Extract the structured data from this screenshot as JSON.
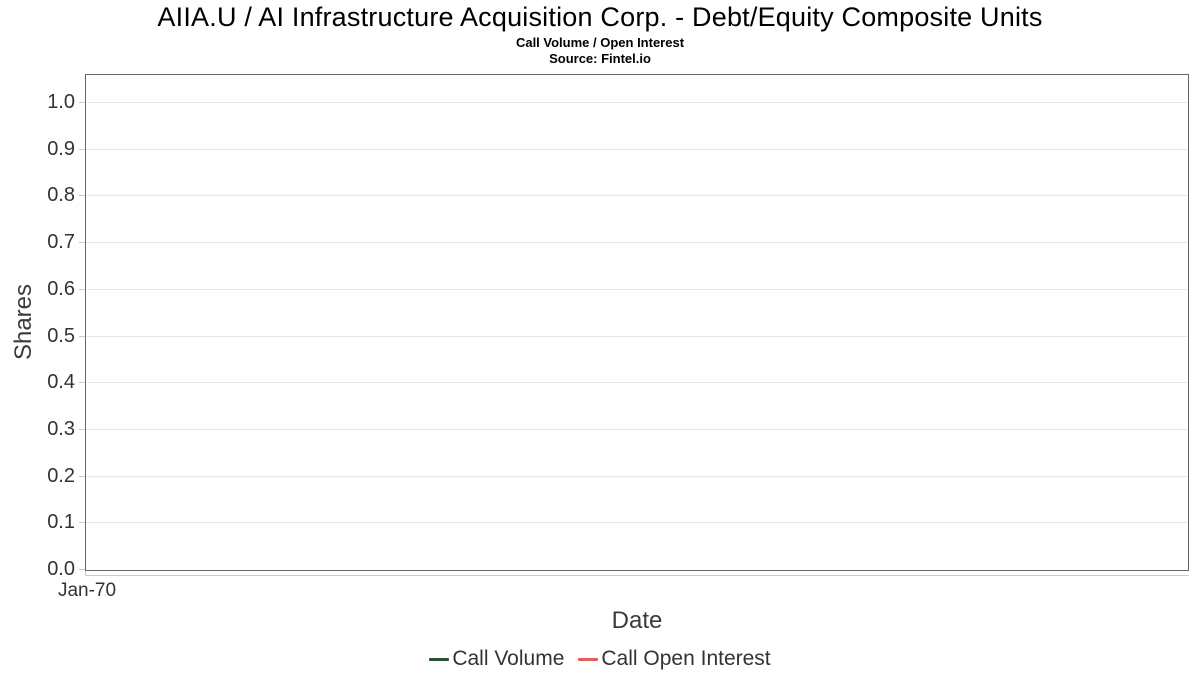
{
  "chart_data": {
    "type": "line",
    "title": "AIIA.U / AI Infrastructure Acquisition Corp. - Debt/Equity Composite Units",
    "subtitle": "Call Volume / Open Interest",
    "source": "Source: Fintel.io",
    "xlabel": "Date",
    "ylabel": "Shares",
    "ylim": [
      0.0,
      1.0
    ],
    "yticks": [
      0.0,
      0.1,
      0.2,
      0.3,
      0.4,
      0.5,
      0.6,
      0.7,
      0.8,
      0.9,
      1.0
    ],
    "ytick_labels": [
      "0.0",
      "0.1",
      "0.2",
      "0.3",
      "0.4",
      "0.5",
      "0.6",
      "0.7",
      "0.8",
      "0.9",
      "1.0"
    ],
    "xtick_labels": [
      "Jan-70"
    ],
    "grid": "horizontal",
    "legend_position": "bottom-center",
    "series": [
      {
        "name": "Call Volume",
        "color": "#215732",
        "x": [],
        "values": []
      },
      {
        "name": "Call Open Interest",
        "color": "#f8564f",
        "x": [],
        "values": []
      }
    ]
  },
  "colors": {
    "background": "#ffffff",
    "plot_border": "#656565",
    "gridline": "#e6e6e6",
    "tick": "#cccccc",
    "axis_line": "#cccccc",
    "title_text": "#000000",
    "tick_label_text": "#333333",
    "axis_title_text": "#3b3b3b",
    "legend_text": "#333333"
  }
}
